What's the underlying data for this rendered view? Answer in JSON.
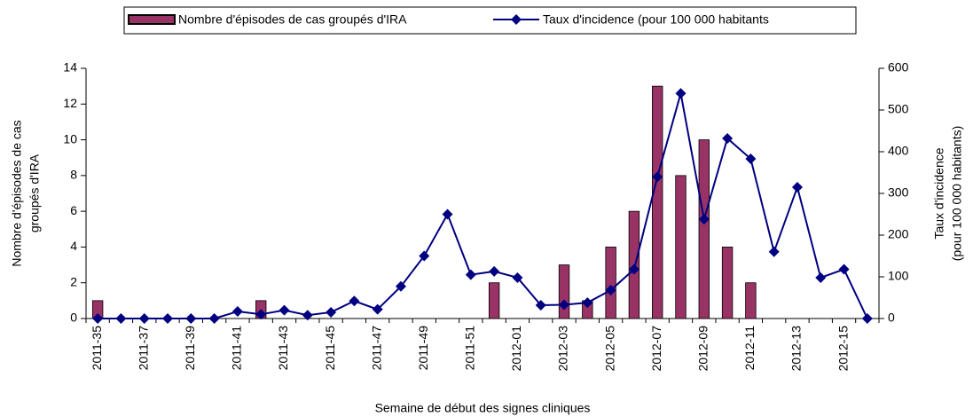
{
  "chart_data": {
    "type": "bar_line",
    "xlabel": "Semaine de début des signes cliniques",
    "ylabel": [
      "Nombre d'épisodes de cas",
      "groupés d'IRA"
    ],
    "y2label": [
      "Taux d'incidence",
      "(pour 100 000 habitants)"
    ],
    "categories": [
      "2011-35",
      null,
      "2011-37",
      null,
      "2011-39",
      null,
      "2011-41",
      null,
      "2011-43",
      null,
      "2011-45",
      null,
      "2011-47",
      null,
      "2011-49",
      null,
      "2011-51",
      null,
      "2012-01",
      null,
      "2012-03",
      null,
      "2012-05",
      null,
      "2012-07",
      null,
      "2012-09",
      null,
      "2012-11",
      null,
      "2012-13",
      null,
      "2012-15",
      null
    ],
    "series": [
      {
        "name": "Nombre d'épisodes de cas groupés d'IRA",
        "type": "bar",
        "color": "#993366",
        "values": [
          1,
          null,
          null,
          null,
          null,
          null,
          null,
          1,
          null,
          null,
          null,
          null,
          null,
          null,
          null,
          null,
          null,
          2,
          null,
          null,
          3,
          1,
          4,
          6,
          13,
          8,
          10,
          4,
          2,
          null,
          null,
          null,
          null,
          null
        ]
      },
      {
        "name": "Taux d'incidence (pour 100 000 habitants",
        "type": "line",
        "axis": "y2",
        "color": "#000080",
        "values": [
          0,
          0,
          0,
          0,
          0,
          0,
          17,
          10,
          20,
          8,
          15,
          42,
          22,
          77,
          150,
          250,
          105,
          113,
          98,
          32,
          33,
          38,
          68,
          118,
          340,
          540,
          238,
          432,
          383,
          160,
          315,
          98,
          118,
          0
        ]
      }
    ],
    "ylim": [
      0,
      14
    ],
    "yticks": [
      0,
      2,
      4,
      6,
      8,
      10,
      12,
      14
    ],
    "y2lim": [
      0,
      600
    ],
    "y2ticks": [
      0,
      100,
      200,
      300,
      400,
      500,
      600
    ],
    "grid": false,
    "legend": "top"
  }
}
